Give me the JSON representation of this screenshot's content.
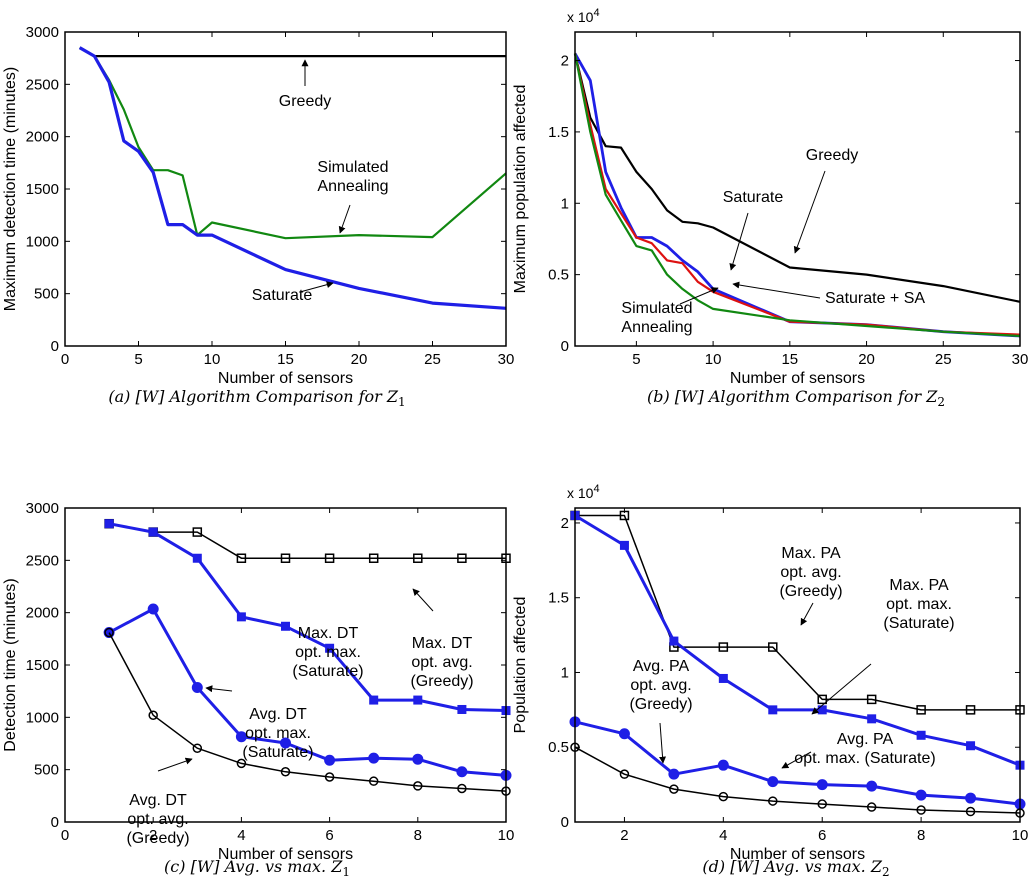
{
  "chart_data": [
    {
      "id": "a",
      "type": "line",
      "caption": "(a) [W] Algorithm Comparison for Z",
      "caption_sub": "1",
      "xlabel": "Number of sensors",
      "ylabel": "Maximum detection time (minutes)",
      "xlim": [
        0,
        30
      ],
      "ylim": [
        0,
        3000
      ],
      "xticks": [
        0,
        5,
        10,
        15,
        20,
        25,
        30
      ],
      "yticks": [
        0,
        500,
        1000,
        1500,
        2000,
        2500,
        3000
      ],
      "series": [
        {
          "key": "greedy",
          "color": "#000000",
          "width": 2.2,
          "x": [
            1,
            2,
            3,
            4,
            5,
            6,
            7,
            8,
            9,
            10,
            15,
            20,
            25,
            30
          ],
          "y": [
            2850,
            2770,
            2770,
            2770,
            2770,
            2770,
            2770,
            2770,
            2770,
            2770,
            2770,
            2770,
            2770,
            2770
          ]
        },
        {
          "key": "sa",
          "color": "#118811",
          "width": 2.2,
          "x": [
            1,
            2,
            3,
            4,
            5,
            6,
            7,
            8,
            9,
            10,
            15,
            20,
            25,
            30
          ],
          "y": [
            2850,
            2770,
            2540,
            2260,
            1900,
            1680,
            1680,
            1630,
            1060,
            1180,
            1030,
            1060,
            1040,
            1650
          ]
        },
        {
          "key": "saturate",
          "color": "#1f1fe6",
          "width": 3.2,
          "x": [
            1,
            2,
            3,
            4,
            5,
            6,
            7,
            8,
            9,
            10,
            15,
            20,
            25,
            30
          ],
          "y": [
            2850,
            2770,
            2520,
            1960,
            1860,
            1660,
            1160,
            1160,
            1060,
            1060,
            730,
            550,
            410,
            360
          ]
        }
      ],
      "annotations": [
        {
          "lines": [
            "Greedy"
          ]
        },
        {
          "lines": [
            "Simulated",
            "Annealing"
          ]
        },
        {
          "lines": [
            "Saturate"
          ]
        }
      ]
    },
    {
      "id": "b",
      "type": "line",
      "caption": "(b) [W] Algorithm Comparison for Z",
      "caption_sub": "2",
      "xlabel": "Number of sensors",
      "ylabel": "Maximum population affected",
      "exponent_base": "x 10",
      "exponent_power": "4",
      "xlim": [
        1,
        30
      ],
      "ylim": [
        0,
        2.2
      ],
      "xticks": [
        5,
        10,
        15,
        20,
        25,
        30
      ],
      "yticks": [
        0,
        0.5,
        1,
        1.5,
        2
      ],
      "ytick_labels": [
        "0",
        "0.5",
        "1",
        "1.5",
        "2"
      ],
      "series": [
        {
          "key": "greedy",
          "color": "#000000",
          "width": 2.2,
          "x": [
            1,
            2,
            3,
            4,
            5,
            6,
            7,
            8,
            9,
            10,
            15,
            20,
            25,
            30
          ],
          "y": [
            2.05,
            1.6,
            1.4,
            1.39,
            1.22,
            1.1,
            0.95,
            0.87,
            0.86,
            0.83,
            0.55,
            0.5,
            0.42,
            0.31
          ]
        },
        {
          "key": "saturate",
          "color": "#1f1fe6",
          "width": 2.8,
          "x": [
            1,
            2,
            3,
            4,
            5,
            6,
            7,
            8,
            9,
            10,
            15,
            20,
            25,
            30
          ],
          "y": [
            2.05,
            1.86,
            1.22,
            0.97,
            0.76,
            0.76,
            0.7,
            0.6,
            0.52,
            0.4,
            0.17,
            0.15,
            0.1,
            0.07
          ]
        },
        {
          "key": "saturate_sa",
          "color": "#dd1111",
          "width": 2.2,
          "x": [
            1,
            2,
            3,
            4,
            5,
            6,
            7,
            8,
            9,
            10,
            15,
            20,
            25,
            30
          ],
          "y": [
            2.05,
            1.55,
            1.1,
            0.93,
            0.76,
            0.72,
            0.6,
            0.58,
            0.45,
            0.38,
            0.17,
            0.15,
            0.1,
            0.08
          ]
        },
        {
          "key": "sa",
          "color": "#118811",
          "width": 2.2,
          "x": [
            1,
            2,
            3,
            4,
            5,
            6,
            7,
            8,
            9,
            10,
            15,
            20,
            25,
            30
          ],
          "y": [
            2.05,
            1.5,
            1.06,
            0.88,
            0.7,
            0.67,
            0.5,
            0.4,
            0.32,
            0.26,
            0.18,
            0.14,
            0.1,
            0.07
          ]
        }
      ],
      "annotations": [
        {
          "lines": [
            "Greedy"
          ]
        },
        {
          "lines": [
            "Saturate"
          ]
        },
        {
          "lines": [
            "Saturate + SA"
          ]
        },
        {
          "lines": [
            "Simulated",
            "Annealing"
          ]
        }
      ]
    },
    {
      "id": "c",
      "type": "line",
      "caption": "(c) [W] Avg. vs max. Z",
      "caption_sub": "1",
      "xlabel": "Number of sensors",
      "ylabel": "Detection time (minutes)",
      "xlim": [
        0,
        10
      ],
      "ylim": [
        0,
        3000
      ],
      "xticks": [
        0,
        2,
        4,
        6,
        8,
        10
      ],
      "yticks": [
        0,
        500,
        1000,
        1500,
        2000,
        2500,
        3000
      ],
      "series": [
        {
          "key": "max_dt_avg_greedy",
          "color": "#000000",
          "width": 1.5,
          "marker": "square",
          "marker_fill": "none",
          "x": [
            1,
            2,
            3,
            4,
            5,
            6,
            7,
            8,
            9,
            10
          ],
          "y": [
            2850,
            2770,
            2770,
            2520,
            2520,
            2520,
            2520,
            2520,
            2520,
            2520
          ]
        },
        {
          "key": "max_dt_max_saturate",
          "color": "#1f1fe6",
          "width": 3,
          "marker": "square",
          "marker_fill": "#1f1fe6",
          "x": [
            1,
            2,
            3,
            4,
            5,
            6,
            7,
            8,
            9,
            10
          ],
          "y": [
            2850,
            2770,
            2520,
            1960,
            1870,
            1660,
            1165,
            1165,
            1075,
            1065
          ]
        },
        {
          "key": "avg_dt_max_saturate",
          "color": "#1f1fe6",
          "width": 3,
          "marker": "circle",
          "marker_fill": "#1f1fe6",
          "x": [
            1,
            2,
            3,
            4,
            5,
            6,
            7,
            8,
            9,
            10
          ],
          "y": [
            1810,
            2035,
            1285,
            815,
            755,
            590,
            610,
            600,
            480,
            445
          ]
        },
        {
          "key": "avg_dt_avg_greedy",
          "color": "#000000",
          "width": 1.5,
          "marker": "circle",
          "marker_fill": "none",
          "x": [
            1,
            2,
            3,
            4,
            5,
            6,
            7,
            8,
            9,
            10
          ],
          "y": [
            1810,
            1020,
            705,
            560,
            480,
            430,
            390,
            345,
            320,
            295
          ]
        }
      ],
      "annotations": [
        {
          "lines": [
            "Max. DT",
            "opt. max.",
            "(Saturate)"
          ]
        },
        {
          "lines": [
            "Max. DT",
            "opt. avg.",
            "(Greedy)"
          ]
        },
        {
          "lines": [
            "Avg. DT",
            "opt. max.",
            "(Saturate)"
          ]
        },
        {
          "lines": [
            "Avg. DT",
            "opt. avg.",
            "(Greedy)"
          ]
        }
      ]
    },
    {
      "id": "d",
      "type": "line",
      "caption": "(d) [W] Avg. vs max. Z",
      "caption_sub": "2",
      "xlabel": "Number of sensors",
      "ylabel": "Population affected",
      "exponent_base": "x 10",
      "exponent_power": "4",
      "xlim": [
        1,
        10
      ],
      "ylim": [
        0,
        2.1
      ],
      "xticks": [
        2,
        4,
        6,
        8,
        10
      ],
      "yticks": [
        0,
        0.5,
        1,
        1.5,
        2
      ],
      "ytick_labels": [
        "0",
        "0.5",
        "1",
        "1.5",
        "2"
      ],
      "series": [
        {
          "key": "max_pa_avg_greedy",
          "color": "#000000",
          "width": 1.5,
          "marker": "square",
          "marker_fill": "none",
          "x": [
            1,
            2,
            3,
            4,
            5,
            6,
            7,
            8,
            9,
            10
          ],
          "y": [
            2.05,
            2.05,
            1.17,
            1.17,
            1.17,
            0.82,
            0.82,
            0.75,
            0.75,
            0.75
          ]
        },
        {
          "key": "max_pa_max_saturate",
          "color": "#1f1fe6",
          "width": 3,
          "marker": "square",
          "marker_fill": "#1f1fe6",
          "x": [
            1,
            2,
            3,
            4,
            5,
            6,
            7,
            8,
            9,
            10
          ],
          "y": [
            2.05,
            1.85,
            1.21,
            0.96,
            0.75,
            0.75,
            0.69,
            0.58,
            0.51,
            0.38
          ]
        },
        {
          "key": "avg_pa_max_saturate",
          "color": "#1f1fe6",
          "width": 3,
          "marker": "circle",
          "marker_fill": "#1f1fe6",
          "x": [
            1,
            2,
            3,
            4,
            5,
            6,
            7,
            8,
            9,
            10
          ],
          "y": [
            0.67,
            0.59,
            0.32,
            0.38,
            0.27,
            0.25,
            0.24,
            0.18,
            0.16,
            0.12
          ]
        },
        {
          "key": "avg_pa_avg_greedy",
          "color": "#000000",
          "width": 1.5,
          "marker": "circle",
          "marker_fill": "none",
          "x": [
            1,
            2,
            3,
            4,
            5,
            6,
            7,
            8,
            9,
            10
          ],
          "y": [
            0.5,
            0.32,
            0.22,
            0.17,
            0.14,
            0.12,
            0.1,
            0.08,
            0.07,
            0.06
          ]
        }
      ],
      "annotations": [
        {
          "lines": [
            "Max. PA",
            "opt. avg.",
            "(Greedy)"
          ]
        },
        {
          "lines": [
            "Max. PA",
            "opt. max.",
            "(Saturate)"
          ]
        },
        {
          "lines": [
            "Avg. PA",
            "opt. avg.",
            "(Greedy)"
          ]
        },
        {
          "lines": [
            "Avg. PA",
            "opt. max. (Saturate)"
          ]
        }
      ]
    }
  ]
}
